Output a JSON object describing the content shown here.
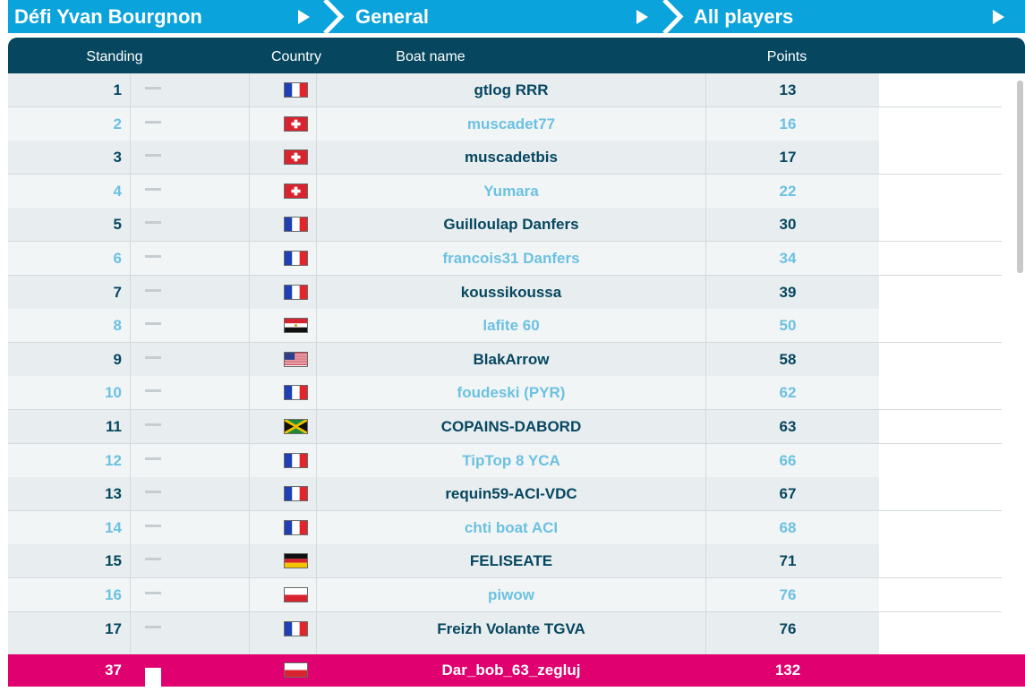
{
  "breadcrumbs": [
    {
      "label": "Défi Yvan Bourgnon"
    },
    {
      "label": "General"
    },
    {
      "label": "All players"
    }
  ],
  "columns": {
    "standing": "Standing",
    "country": "Country",
    "boat_name": "Boat name",
    "points": "Points"
  },
  "rows": [
    {
      "rank": "1",
      "flag": "france",
      "boat": "gtlog RRR",
      "points": "13"
    },
    {
      "rank": "2",
      "flag": "switzerland",
      "boat": "muscadet77",
      "points": "16"
    },
    {
      "rank": "3",
      "flag": "switzerland",
      "boat": "muscadetbis",
      "points": "17"
    },
    {
      "rank": "4",
      "flag": "switzerland",
      "boat": "Yumara",
      "points": "22"
    },
    {
      "rank": "5",
      "flag": "france",
      "boat": "Guilloulap Danfers",
      "points": "30"
    },
    {
      "rank": "6",
      "flag": "france",
      "boat": "francois31 Danfers",
      "points": "34"
    },
    {
      "rank": "7",
      "flag": "france",
      "boat": "koussikoussa",
      "points": "39"
    },
    {
      "rank": "8",
      "flag": "egypt",
      "boat": "lafite 60",
      "points": "50"
    },
    {
      "rank": "9",
      "flag": "usa",
      "boat": "BlakArrow",
      "points": "58"
    },
    {
      "rank": "10",
      "flag": "france",
      "boat": "foudeski (PYR)",
      "points": "62"
    },
    {
      "rank": "11",
      "flag": "jamaica",
      "boat": "COPAINS-DABORD",
      "points": "63"
    },
    {
      "rank": "12",
      "flag": "france",
      "boat": "TipTop 8 YCA",
      "points": "66"
    },
    {
      "rank": "13",
      "flag": "france",
      "boat": "requin59-ACI-VDC",
      "points": "67"
    },
    {
      "rank": "14",
      "flag": "france",
      "boat": "chti boat ACI",
      "points": "68"
    },
    {
      "rank": "15",
      "flag": "germany",
      "boat": "FELISEATE",
      "points": "71"
    },
    {
      "rank": "16",
      "flag": "poland",
      "boat": "piwow",
      "points": "76"
    },
    {
      "rank": "17",
      "flag": "france",
      "boat": "Freizh Volante TGVA",
      "points": "76"
    }
  ],
  "current_player": {
    "rank": "37",
    "flag": "poland",
    "boat": "Dar_bob_63_zegluj",
    "points": "132"
  },
  "colors": {
    "breadcrumb_bg": "#0ba3dc",
    "header_bg": "#06475f",
    "row_dark_text": "#06475f",
    "row_light_text": "#6cc1e1",
    "highlight_bg": "#e0006f"
  }
}
